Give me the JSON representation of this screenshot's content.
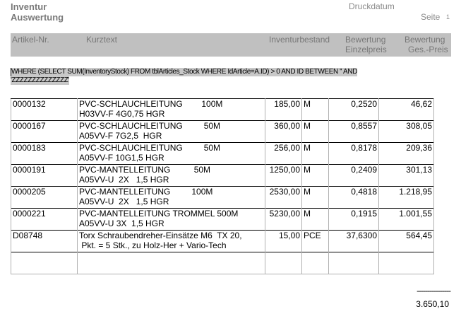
{
  "report": {
    "title1": "Inventur",
    "title2": "Auswertung",
    "print_date_label": "Druckdatum",
    "page_label": "Seite",
    "page_number": "1"
  },
  "columns": {
    "artikel": "Artikel-Nr.",
    "kurztext": "Kurztext",
    "bestand": "Inventurbestand",
    "einzel1": "Bewertung",
    "einzel2": "Einzelpreis",
    "ges1": "Bewertung",
    "ges2": "Ges.-Preis"
  },
  "sql": {
    "line1": "WHERE (SELECT SUM(InventoryStock) FROM tblArticles_Stock WHERE IdArticle=A.ID) > 0 AND ID BETWEEN '' AND",
    "line2": "'ZZZZZZZZZZZZZZ'"
  },
  "rows": [
    {
      "nr": "0000132",
      "text": "PVC-SCHLAUCHLEITUNG        100M\nH03VV-F 4G0,75 HGR",
      "qty": "185,00",
      "unit": "M",
      "price": "0,2520",
      "total": "46,62"
    },
    {
      "nr": "0000167",
      "text": "PVC-SCHLAUCHLEITUNG         50M\nA05VV-F 7G2,5  HGR",
      "qty": "360,00",
      "unit": "M",
      "price": "0,8557",
      "total": "308,05"
    },
    {
      "nr": "0000183",
      "text": "PVC-SCHLAUCHLEITUNG         50M\nA05VV-F 10G1,5 HGR",
      "qty": "256,00",
      "unit": "M",
      "price": "0,8178",
      "total": "209,36"
    },
    {
      "nr": "0000191",
      "text": "PVC-MANTELLEITUNG          50M\nA05VV-U  2X   1,5 HGR",
      "qty": "1250,00",
      "unit": "M",
      "price": "0,2409",
      "total": "301,13"
    },
    {
      "nr": "0000205",
      "text": "PVC-MANTELLEITUNG         100M\nA05VV-U  2X   1,5 HGR",
      "qty": "2530,00",
      "unit": "M",
      "price": "0,4818",
      "total": "1.218,95"
    },
    {
      "nr": "0000221",
      "text": "PVC-MANTELLEITUNG TROMMEL 500M\nA05VV-U 3X  1,5 HGR",
      "qty": "5230,00",
      "unit": "M",
      "price": "0,1915",
      "total": "1.001,55"
    },
    {
      "nr": "D08748",
      "text": "Torx Schraubendreher-Einsätze M6  TX 20,\n Pkt. = 5 Stk., zu Holz-Her + Vario-Tech",
      "qty": "15,00",
      "unit": "PCE",
      "price": "37,6300",
      "total": "564,45"
    }
  ],
  "footer": {
    "separator": "----------------",
    "sum": "3.650,10"
  }
}
